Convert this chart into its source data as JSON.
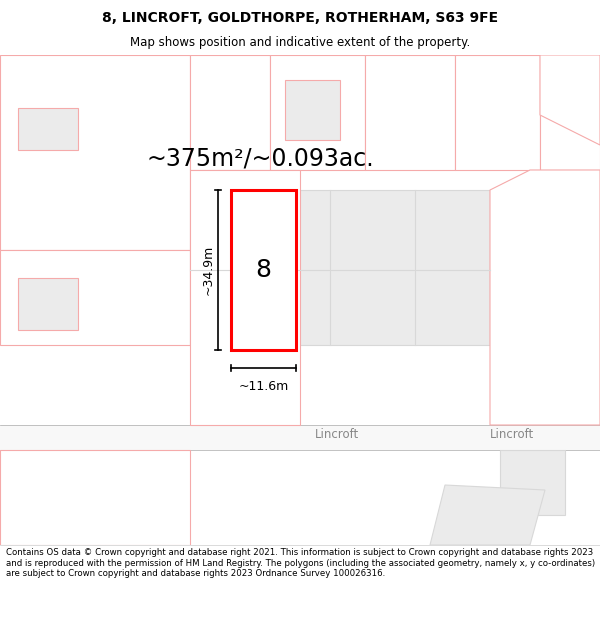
{
  "title": "8, LINCROFT, GOLDTHORPE, ROTHERHAM, S63 9FE",
  "subtitle": "Map shows position and indicative extent of the property.",
  "area_text": "~375m²/~0.093ac.",
  "width_label": "~11.6m",
  "height_label": "~34.9m",
  "property_number": "8",
  "road_label": "Lincroft",
  "road_label2": "Lincroft",
  "copyright_text": "Contains OS data © Crown copyright and database right 2021. This information is subject to Crown copyright and database rights 2023 and is reproduced with the permission of HM Land Registry. The polygons (including the associated geometry, namely x, y co-ordinates) are subject to Crown copyright and database rights 2023 Ordnance Survey 100026316.",
  "pink": "#f5aaaa",
  "red": "#ff0000",
  "gray_light": "#ebebeb",
  "gray_med": "#d8d8d8",
  "white": "#ffffff",
  "title_fontsize": 10,
  "subtitle_fontsize": 8.5,
  "area_fontsize": 17,
  "number_fontsize": 18,
  "dim_fontsize": 9,
  "road_fontsize": 8.5,
  "footer_fontsize": 6.2
}
